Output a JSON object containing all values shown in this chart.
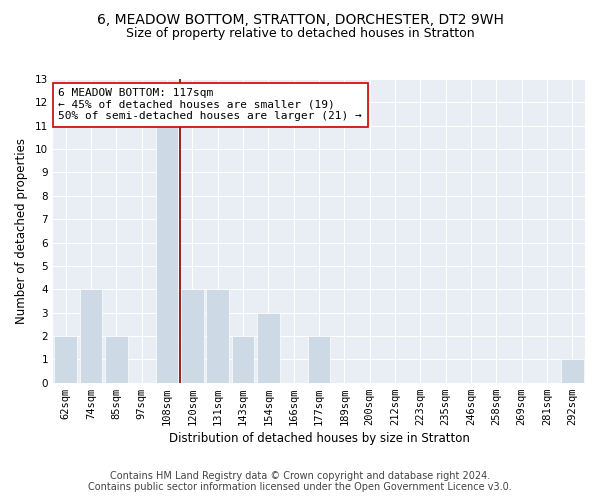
{
  "title": "6, MEADOW BOTTOM, STRATTON, DORCHESTER, DT2 9WH",
  "subtitle": "Size of property relative to detached houses in Stratton",
  "xlabel": "Distribution of detached houses by size in Stratton",
  "ylabel": "Number of detached properties",
  "categories": [
    "62sqm",
    "74sqm",
    "85sqm",
    "97sqm",
    "108sqm",
    "120sqm",
    "131sqm",
    "143sqm",
    "154sqm",
    "166sqm",
    "177sqm",
    "189sqm",
    "200sqm",
    "212sqm",
    "223sqm",
    "235sqm",
    "246sqm",
    "258sqm",
    "269sqm",
    "281sqm",
    "292sqm"
  ],
  "values": [
    2,
    4,
    2,
    0,
    11,
    4,
    4,
    2,
    3,
    0,
    2,
    0,
    0,
    0,
    0,
    0,
    0,
    0,
    0,
    0,
    1
  ],
  "bar_color": "#cdd9e5",
  "red_line_x": 4.5,
  "ylim": [
    0,
    13
  ],
  "yticks": [
    0,
    1,
    2,
    3,
    4,
    5,
    6,
    7,
    8,
    9,
    10,
    11,
    12,
    13
  ],
  "annotation_line1": "6 MEADOW BOTTOM: 117sqm",
  "annotation_line2": "← 45% of detached houses are smaller (19)",
  "annotation_line3": "50% of semi-detached houses are larger (21) →",
  "footer_line1": "Contains HM Land Registry data © Crown copyright and database right 2024.",
  "footer_line2": "Contains public sector information licensed under the Open Government Licence v3.0.",
  "bg_color": "#ffffff",
  "plot_bg_color": "#e8eef4",
  "grid_color": "#ffffff",
  "title_fontsize": 10,
  "subtitle_fontsize": 9,
  "axis_label_fontsize": 8.5,
  "tick_fontsize": 7.5,
  "annotation_fontsize": 8,
  "footer_fontsize": 7
}
